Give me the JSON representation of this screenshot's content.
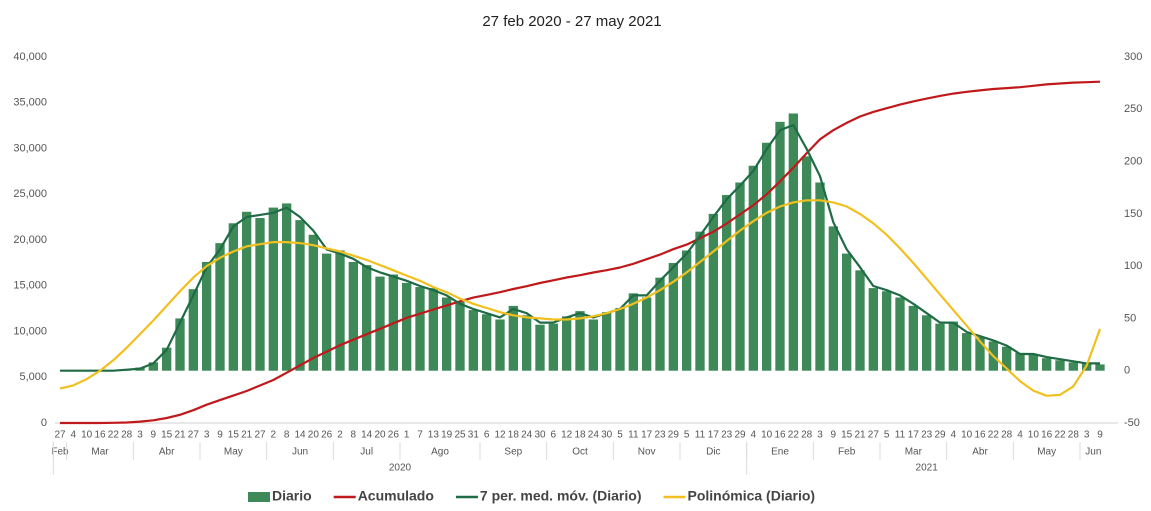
{
  "chart_data": {
    "type": "combo",
    "title": "27 feb 2020 - 27 may 2021",
    "categories": [
      "27",
      "4",
      "10",
      "16",
      "22",
      "28",
      "3",
      "9",
      "15",
      "21",
      "27",
      "3",
      "9",
      "15",
      "21",
      "27",
      "2",
      "8",
      "14",
      "20",
      "26",
      "2",
      "8",
      "14",
      "20",
      "26",
      "1",
      "7",
      "13",
      "19",
      "25",
      "31",
      "6",
      "12",
      "18",
      "24",
      "30",
      "6",
      "12",
      "18",
      "24",
      "30",
      "5",
      "11",
      "17",
      "23",
      "29",
      "5",
      "11",
      "17",
      "23",
      "29",
      "4",
      "10",
      "16",
      "22",
      "28",
      "3",
      "9",
      "15",
      "21",
      "27",
      "5",
      "11",
      "17",
      "23",
      "29",
      "4",
      "10",
      "16",
      "22",
      "28",
      "4",
      "10",
      "16",
      "22",
      "28",
      "3",
      "9"
    ],
    "months": [
      {
        "label": "Feb",
        "from": 0
      },
      {
        "label": "Mar",
        "from": 1
      },
      {
        "label": "Abr",
        "from": 6
      },
      {
        "label": "May",
        "from": 11
      },
      {
        "label": "Jun",
        "from": 16
      },
      {
        "label": "Jul",
        "from": 21
      },
      {
        "label": "Ago",
        "from": 26
      },
      {
        "label": "Sep",
        "from": 32
      },
      {
        "label": "Oct",
        "from": 37
      },
      {
        "label": "Nov",
        "from": 42
      },
      {
        "label": "Dic",
        "from": 47
      },
      {
        "label": "Ene",
        "from": 52
      },
      {
        "label": "Feb",
        "from": 57
      },
      {
        "label": "Mar",
        "from": 62
      },
      {
        "label": "Abr",
        "from": 67
      },
      {
        "label": "May",
        "from": 72
      },
      {
        "label": "Jun",
        "from": 77
      }
    ],
    "years": [
      {
        "label": "2020",
        "from": 0
      },
      {
        "label": "2021",
        "from": 52
      }
    ],
    "series": [
      {
        "name": "Diario",
        "type": "bar",
        "axis": "y2",
        "color": "#3d8a58",
        "values": [
          0,
          0,
          0,
          0,
          0,
          1,
          3,
          8,
          22,
          50,
          78,
          104,
          122,
          141,
          152,
          146,
          156,
          160,
          144,
          130,
          112,
          115,
          104,
          101,
          90,
          92,
          84,
          80,
          79,
          70,
          66,
          58,
          54,
          49,
          62,
          53,
          44,
          45,
          52,
          57,
          49,
          56,
          60,
          74,
          70,
          89,
          103,
          115,
          133,
          150,
          168,
          180,
          196,
          218,
          238,
          246,
          205,
          180,
          138,
          112,
          96,
          79,
          76,
          70,
          62,
          53,
          45,
          47,
          36,
          32,
          28,
          23,
          17,
          15,
          12,
          10,
          8,
          7,
          6
        ]
      },
      {
        "name": "Acumulado",
        "type": "line",
        "axis": "y",
        "color": "#c0191b",
        "values": [
          0,
          0,
          0,
          0,
          20,
          60,
          150,
          300,
          550,
          900,
          1400,
          2000,
          2500,
          3000,
          3500,
          4100,
          4700,
          5500,
          6300,
          7100,
          7800,
          8500,
          9100,
          9700,
          10300,
          10900,
          11500,
          11950,
          12400,
          12850,
          13300,
          13700,
          14000,
          14300,
          14650,
          14950,
          15300,
          15600,
          15900,
          16150,
          16450,
          16700,
          17000,
          17400,
          17900,
          18400,
          19000,
          19500,
          20200,
          20900,
          21800,
          22800,
          23800,
          25000,
          26400,
          27900,
          29500,
          31000,
          32000,
          32800,
          33500,
          34000,
          34400,
          34800,
          35150,
          35450,
          35750,
          36000,
          36200,
          36350,
          36500,
          36600,
          36700,
          36850,
          37000,
          37100,
          37200,
          37250,
          37300
        ]
      },
      {
        "name": "7 per. med. móv. (Diario)",
        "type": "line",
        "axis": "y2",
        "color": "#1e6b45",
        "values": [
          0,
          0,
          0,
          0,
          0,
          1,
          2,
          7,
          20,
          46,
          72,
          99,
          116,
          138,
          147,
          149,
          151,
          156,
          147,
          134,
          116,
          112,
          107,
          99,
          94,
          90,
          86,
          81,
          77,
          72,
          64,
          59,
          55,
          51,
          59,
          55,
          46,
          46,
          51,
          55,
          51,
          55,
          59,
          72,
          72,
          86,
          99,
          112,
          129,
          147,
          164,
          177,
          191,
          212,
          230,
          235,
          212,
          186,
          142,
          116,
          99,
          81,
          77,
          72,
          64,
          55,
          46,
          46,
          37,
          33,
          29,
          24,
          16,
          16,
          13,
          11,
          9,
          7,
          7
        ]
      },
      {
        "name": "Polinómica (Diario)",
        "type": "line",
        "axis": "y2",
        "color": "#f2c01e",
        "values": [
          -17,
          -14,
          -8,
          0,
          10,
          22,
          35,
          48,
          62,
          76,
          89,
          100,
          108,
          114,
          119,
          121,
          123,
          123,
          122,
          120,
          117,
          114,
          110,
          106,
          101,
          96,
          91,
          86,
          80,
          75,
          69,
          64,
          60,
          56,
          53,
          51,
          50,
          49,
          49,
          50,
          52,
          55,
          59,
          64,
          70,
          77,
          85,
          94,
          104,
          114,
          124,
          134,
          143,
          151,
          157,
          161,
          163,
          163,
          161,
          157,
          150,
          141,
          130,
          117,
          103,
          88,
          73,
          58,
          43,
          28,
          14,
          2,
          -10,
          -19,
          -24,
          -23,
          -15,
          5,
          40
        ]
      }
    ],
    "ylim": [
      0,
      40000
    ],
    "yticks": [
      0,
      {
        "value": 5000,
        "label": "5,000"
      },
      {
        "value": 10000,
        "label": "10,000"
      },
      {
        "value": 15000,
        "label": "15,000"
      },
      {
        "value": 20000,
        "label": "20,000"
      },
      {
        "value": 25000,
        "label": "25,000"
      },
      {
        "value": 30000,
        "label": "30,000"
      },
      {
        "value": 35000,
        "label": "35,000"
      },
      {
        "value": 40000,
        "label": "40,000"
      }
    ],
    "y2lim": [
      -50,
      300
    ],
    "y2ticks": [
      -50,
      0,
      50,
      100,
      150,
      200,
      250,
      300
    ],
    "legend": "bottom",
    "grid": false
  }
}
